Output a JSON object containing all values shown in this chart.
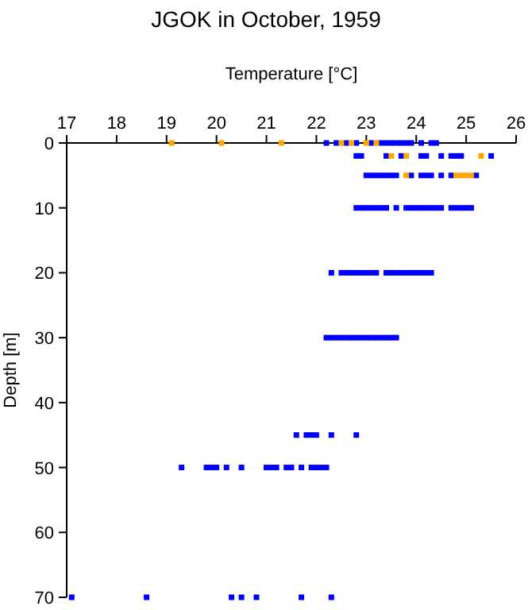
{
  "chart_data": {
    "type": "scatter",
    "title": "JGOK in October, 1959",
    "xlabel": "Temperature [°C]",
    "ylabel": "Depth [m]",
    "xlim": [
      17,
      26
    ],
    "xticks": [
      17,
      18,
      19,
      20,
      21,
      22,
      23,
      24,
      25,
      26
    ],
    "ylim": [
      70,
      0
    ],
    "yticks": [
      0,
      10,
      20,
      30,
      40,
      50,
      60,
      70
    ],
    "marker": "square",
    "series": [
      {
        "color": "#0000ff",
        "x": [
          22.2,
          22.4,
          22.6,
          22.8,
          23.1,
          23.3,
          23.4,
          23.5,
          23.6,
          23.7,
          23.8,
          23.9,
          24.1,
          24.3,
          24.4,
          22.8,
          22.9,
          23.4,
          23.7,
          24.1,
          24.2,
          24.5,
          24.7,
          24.8,
          24.9,
          25.5,
          23.0,
          23.1,
          23.2,
          23.3,
          23.4,
          23.5,
          23.6,
          23.9,
          24.1,
          24.2,
          24.3,
          24.5,
          24.7,
          25.2,
          22.8,
          22.9,
          23.0,
          23.1,
          23.2,
          23.3,
          23.4,
          23.6,
          23.8,
          23.9,
          24.0,
          24.1,
          24.2,
          24.3,
          24.4,
          24.5,
          24.7,
          24.8,
          24.9,
          25.0,
          25.1,
          22.3,
          22.5,
          22.6,
          22.7,
          22.8,
          22.9,
          23.0,
          23.1,
          23.2,
          23.4,
          23.5,
          23.6,
          23.7,
          23.8,
          23.9,
          24.0,
          24.1,
          24.2,
          24.3,
          22.2,
          22.3,
          22.4,
          22.5,
          22.6,
          22.7,
          22.8,
          22.9,
          23.0,
          23.1,
          23.2,
          23.3,
          23.4,
          23.5,
          23.6,
          21.6,
          21.8,
          21.9,
          22.0,
          22.3,
          22.8,
          19.3,
          19.8,
          19.9,
          20.0,
          20.2,
          20.5,
          21.0,
          21.1,
          21.2,
          21.4,
          21.5,
          21.7,
          21.9,
          22.0,
          22.1,
          22.2,
          17.1,
          18.6,
          20.3,
          20.5,
          20.8,
          21.7,
          22.3
        ],
        "values": [
          0,
          0,
          0,
          0,
          0,
          0,
          0,
          0,
          0,
          0,
          0,
          0,
          0,
          0,
          0,
          2,
          2,
          2,
          2,
          2,
          2,
          2,
          2,
          2,
          2,
          2,
          5,
          5,
          5,
          5,
          5,
          5,
          5,
          5,
          5,
          5,
          5,
          5,
          5,
          5,
          10,
          10,
          10,
          10,
          10,
          10,
          10,
          10,
          10,
          10,
          10,
          10,
          10,
          10,
          10,
          10,
          10,
          10,
          10,
          10,
          10,
          20,
          20,
          20,
          20,
          20,
          20,
          20,
          20,
          20,
          20,
          20,
          20,
          20,
          20,
          20,
          20,
          20,
          20,
          20,
          30,
          30,
          30,
          30,
          30,
          30,
          30,
          30,
          30,
          30,
          30,
          30,
          30,
          30,
          30,
          45,
          45,
          45,
          45,
          45,
          45,
          50,
          50,
          50,
          50,
          50,
          50,
          50,
          50,
          50,
          50,
          50,
          50,
          50,
          50,
          50,
          50,
          70,
          70,
          70,
          70,
          70,
          70,
          70
        ]
      },
      {
        "color": "#ffa500",
        "x": [
          19.1,
          20.1,
          21.3,
          22.5,
          22.7,
          23.0,
          23.2,
          23.5,
          23.8,
          25.3,
          23.8,
          24.8,
          24.9,
          25.0,
          25.1
        ],
        "values": [
          0,
          0,
          0,
          0,
          0,
          0,
          0,
          2,
          2,
          2,
          5,
          5,
          5,
          5,
          5
        ]
      }
    ]
  }
}
